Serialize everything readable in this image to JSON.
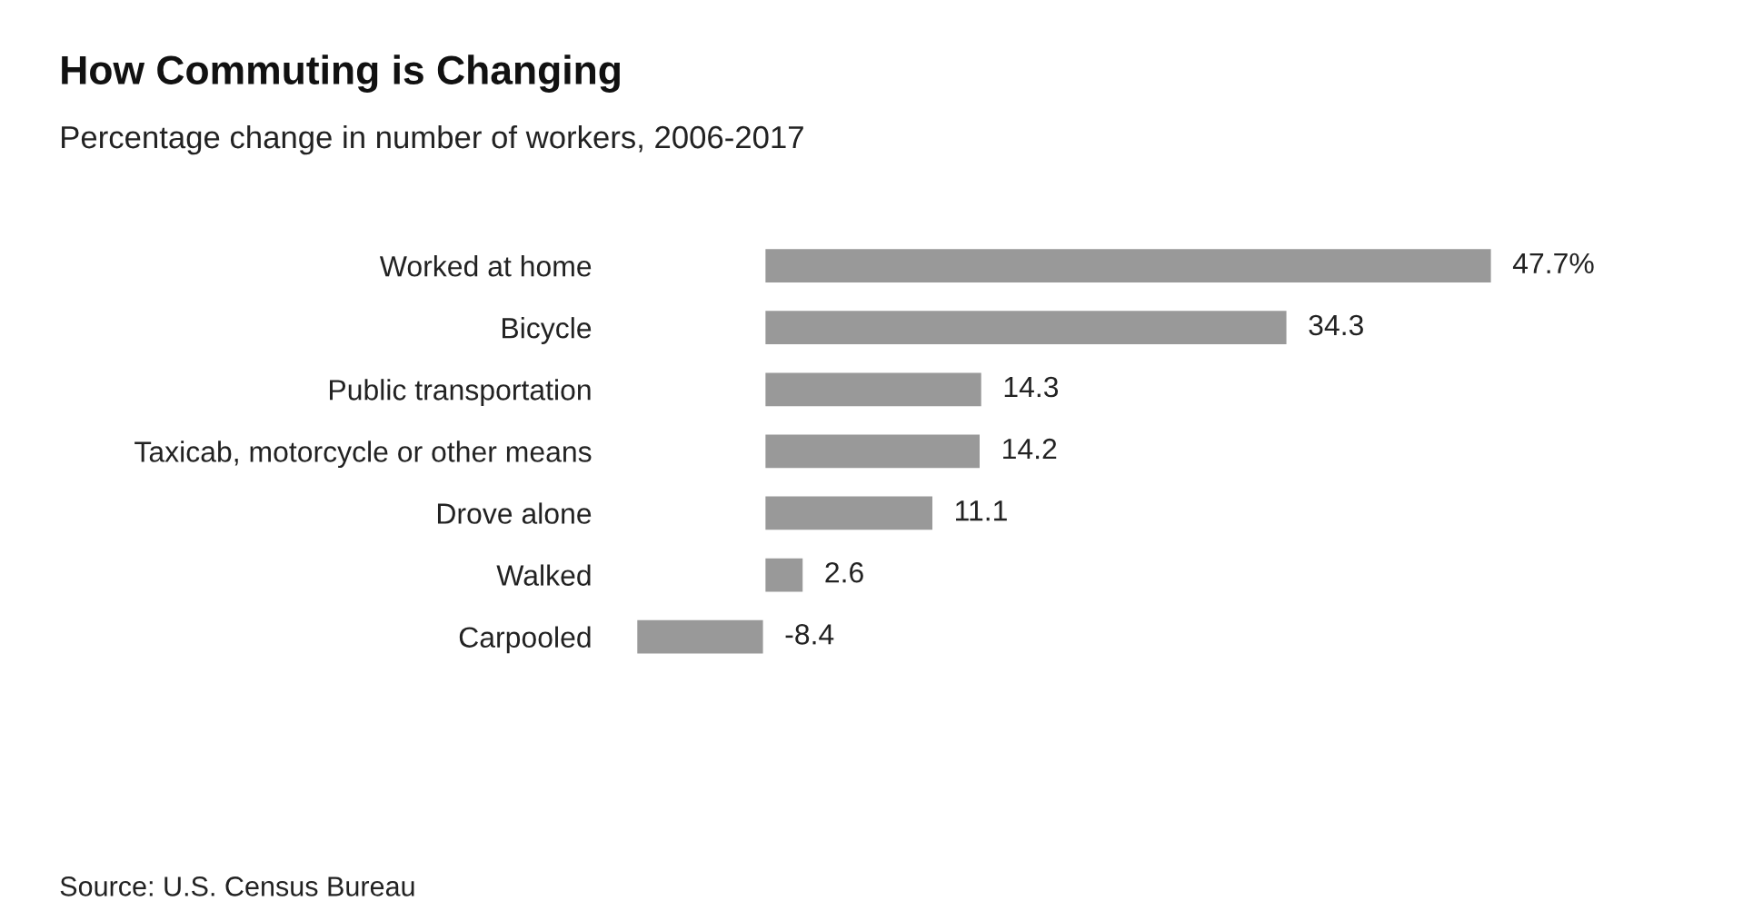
{
  "chart_data": {
    "type": "bar",
    "orientation": "horizontal",
    "title": "How Commuting is Changing",
    "subtitle": "Percentage change in number of workers, 2006-2017",
    "categories": [
      "Worked at home",
      "Bicycle",
      "Public transportation",
      "Taxicab, motorcycle or other means",
      "Drove alone",
      "Walked",
      "Carpooled"
    ],
    "values": [
      47.7,
      34.3,
      14.3,
      14.2,
      11.1,
      2.6,
      -8.4
    ],
    "value_labels": [
      "47.7%",
      "34.3",
      "14.3",
      "14.2",
      "11.1",
      "2.6",
      "-8.4"
    ],
    "color": "#999999",
    "tick_labels": "y",
    "grid": false,
    "legend": false,
    "annotations": [
      "Source: U.S. Census Bureau"
    ]
  }
}
